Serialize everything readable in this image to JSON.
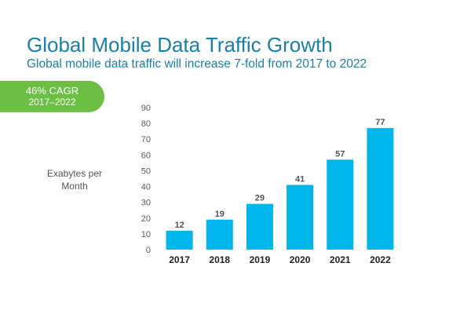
{
  "header": {
    "title": "Global Mobile Data Traffic Growth",
    "subtitle": "Global mobile data traffic will increase 7-fold from 2017 to 2022"
  },
  "badge": {
    "line1": "46% CAGR",
    "line2": "2017–2022",
    "color": "#6cbe45"
  },
  "colors": {
    "bar": "#00b5e9",
    "title": "#1a7fa6"
  },
  "chart_data": {
    "type": "bar",
    "title": "Global Mobile Data Traffic Growth",
    "subtitle": "Global mobile data traffic will increase 7-fold from 2017 to 2022",
    "xlabel": "",
    "ylabel_lines": [
      "Exabytes per",
      "Month"
    ],
    "categories": [
      "2017",
      "2018",
      "2019",
      "2020",
      "2021",
      "2022"
    ],
    "values": [
      12,
      19,
      29,
      41,
      57,
      77
    ],
    "data_labels": [
      "12",
      "19",
      "29",
      "41",
      "57",
      "77"
    ],
    "ylim": [
      0,
      90
    ],
    "yticks": [
      0,
      10,
      20,
      30,
      40,
      50,
      60,
      70,
      80,
      90
    ],
    "grid": false,
    "legend": "none"
  }
}
